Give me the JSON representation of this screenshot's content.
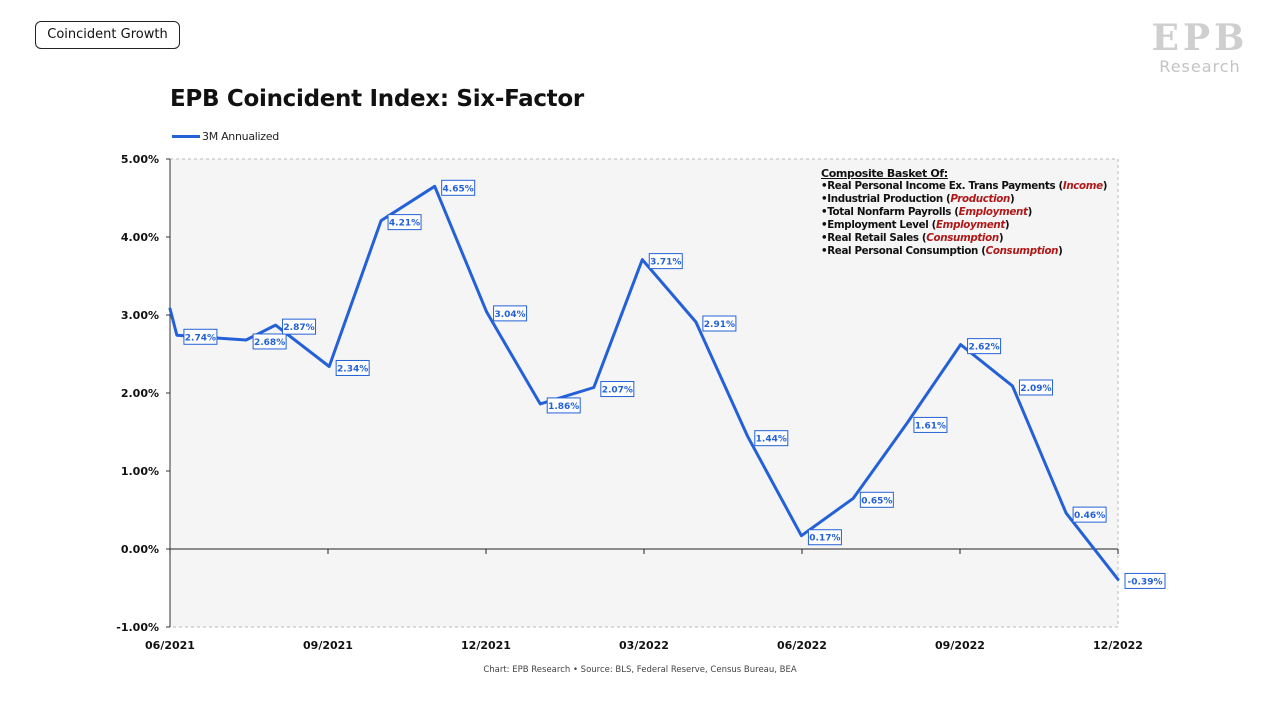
{
  "tag": "Coincident Growth",
  "logo": {
    "mark": "EPB",
    "text": "Research"
  },
  "source_note": "Chart: EPB Research  •  Source: BLS, Federal Reserve, Census Bureau, BEA",
  "basket": {
    "heading": "Composite Basket Of:",
    "items": [
      {
        "text": "•Real Personal Income Ex. Trans Payments (",
        "category": "Income",
        "close": ")"
      },
      {
        "text": "•Industrial Production (",
        "category": "Production",
        "close": ")"
      },
      {
        "text": "•Total Nonfarm Payrolls (",
        "category": "Employment",
        "close": ")"
      },
      {
        "text": "•Employment Level (",
        "category": "Employment",
        "close": ")"
      },
      {
        "text": "•Real Retail Sales (",
        "category": "Consumption",
        "close": ")"
      },
      {
        "text": "•Real Personal Consumption (",
        "category": "Consumption",
        "close": ")"
      }
    ]
  },
  "colors": {
    "series": "#2461d8",
    "plot_bg": "#f5f5f5",
    "label_border": "#2461d8",
    "category": "#b01818"
  },
  "chart_data": {
    "type": "line",
    "title": "EPB Coincident Index: Six-Factor",
    "xlabel": "",
    "ylabel": "",
    "ylim": [
      -0.01,
      0.05
    ],
    "yticks": [
      "5.00%",
      "4.00%",
      "3.00%",
      "2.00%",
      "1.00%",
      "0.00%",
      "-1.00%"
    ],
    "xticks": [
      "06/2021",
      "09/2021",
      "12/2021",
      "03/2022",
      "06/2022",
      "09/2022",
      "12/2022"
    ],
    "grid": false,
    "legend_position": "top-left",
    "series": [
      {
        "name": "3M Annualized",
        "points": [
          {
            "x": "2021-06-01",
            "y": 3.08
          },
          {
            "x": "2021-06-05",
            "y": 2.74,
            "label": "2.74%"
          },
          {
            "x": "2021-07-01",
            "y": 2.7
          },
          {
            "x": "2021-07-15",
            "y": 2.68,
            "label": "2.68%"
          },
          {
            "x": "2021-08-01",
            "y": 2.87,
            "label": "2.87%"
          },
          {
            "x": "2021-09-01",
            "y": 2.34,
            "label": "2.34%"
          },
          {
            "x": "2021-10-01",
            "y": 4.21,
            "label": "4.21%"
          },
          {
            "x": "2021-11-01",
            "y": 4.65,
            "label": "4.65%"
          },
          {
            "x": "2021-12-01",
            "y": 3.04,
            "label": "3.04%"
          },
          {
            "x": "2022-01-01",
            "y": 1.86,
            "label": "1.86%"
          },
          {
            "x": "2022-02-01",
            "y": 2.07,
            "label": "2.07%"
          },
          {
            "x": "2022-03-01",
            "y": 3.71,
            "label": "3.71%"
          },
          {
            "x": "2022-04-01",
            "y": 2.91,
            "label": "2.91%"
          },
          {
            "x": "2022-05-01",
            "y": 1.44,
            "label": "1.44%"
          },
          {
            "x": "2022-06-01",
            "y": 0.17,
            "label": "0.17%"
          },
          {
            "x": "2022-07-01",
            "y": 0.65,
            "label": "0.65%"
          },
          {
            "x": "2022-08-01",
            "y": 1.61,
            "label": "1.61%"
          },
          {
            "x": "2022-09-01",
            "y": 2.62,
            "label": "2.62%"
          },
          {
            "x": "2022-10-01",
            "y": 2.09,
            "label": "2.09%"
          },
          {
            "x": "2022-11-01",
            "y": 0.46,
            "label": "0.46%"
          },
          {
            "x": "2022-12-01",
            "y": -0.39,
            "label": "-0.39%"
          }
        ]
      }
    ]
  }
}
